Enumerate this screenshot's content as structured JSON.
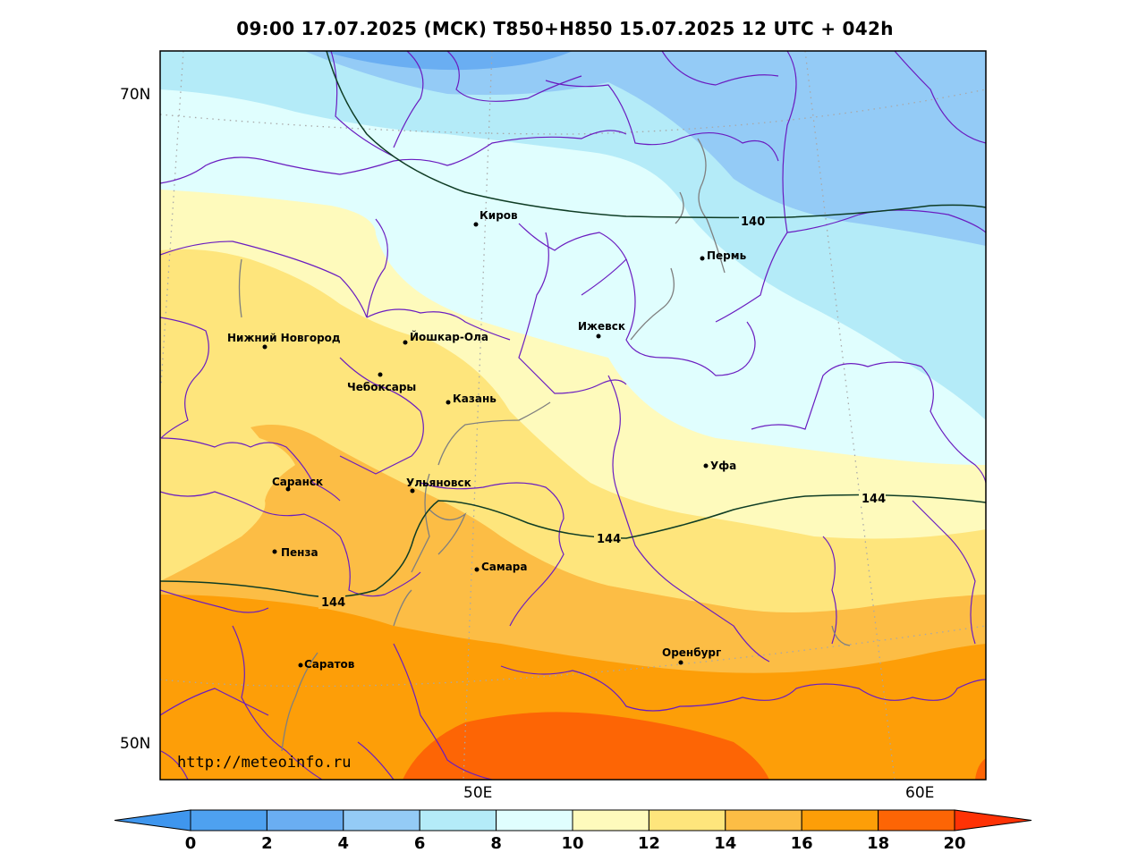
{
  "title": "09:00 17.07.2025 (МСК) T850+H850 15.07.2025 12 UTC + 042h",
  "watermark": "http://meteoinfo.ru",
  "lat_labels": [
    "70N",
    "50N"
  ],
  "lon_labels": [
    "50E",
    "60E"
  ],
  "cities": [
    {
      "name": "Киров"
    },
    {
      "name": "Пермь"
    },
    {
      "name": "Нижний Новгород"
    },
    {
      "name": "Йошкар-Ола"
    },
    {
      "name": "Ижевск"
    },
    {
      "name": "Чебоксары"
    },
    {
      "name": "Казань"
    },
    {
      "name": "Уфа"
    },
    {
      "name": "Саранск"
    },
    {
      "name": "Ульяновск"
    },
    {
      "name": "Пенза"
    },
    {
      "name": "Самара"
    },
    {
      "name": "Оренбург"
    },
    {
      "name": "Саратов"
    }
  ],
  "contour_labels": [
    "140",
    "144",
    "144",
    "144"
  ],
  "colorbar": {
    "ticks": [
      "0",
      "2",
      "4",
      "6",
      "8",
      "10",
      "12",
      "14",
      "16",
      "18",
      "20"
    ],
    "colors": [
      "#4ea1f0",
      "#6aaef2",
      "#94cbf6",
      "#b4ebf8",
      "#e0fefe",
      "#fefabc",
      "#fee57c",
      "#fcbd45",
      "#fd9e08",
      "#fd6505"
    ],
    "under_color": "#3f96ee",
    "over_color": "#fe3205"
  },
  "colors": {
    "border": "#6a1cc0",
    "river": "#7f7f7f",
    "contour": "#0e3c24"
  }
}
